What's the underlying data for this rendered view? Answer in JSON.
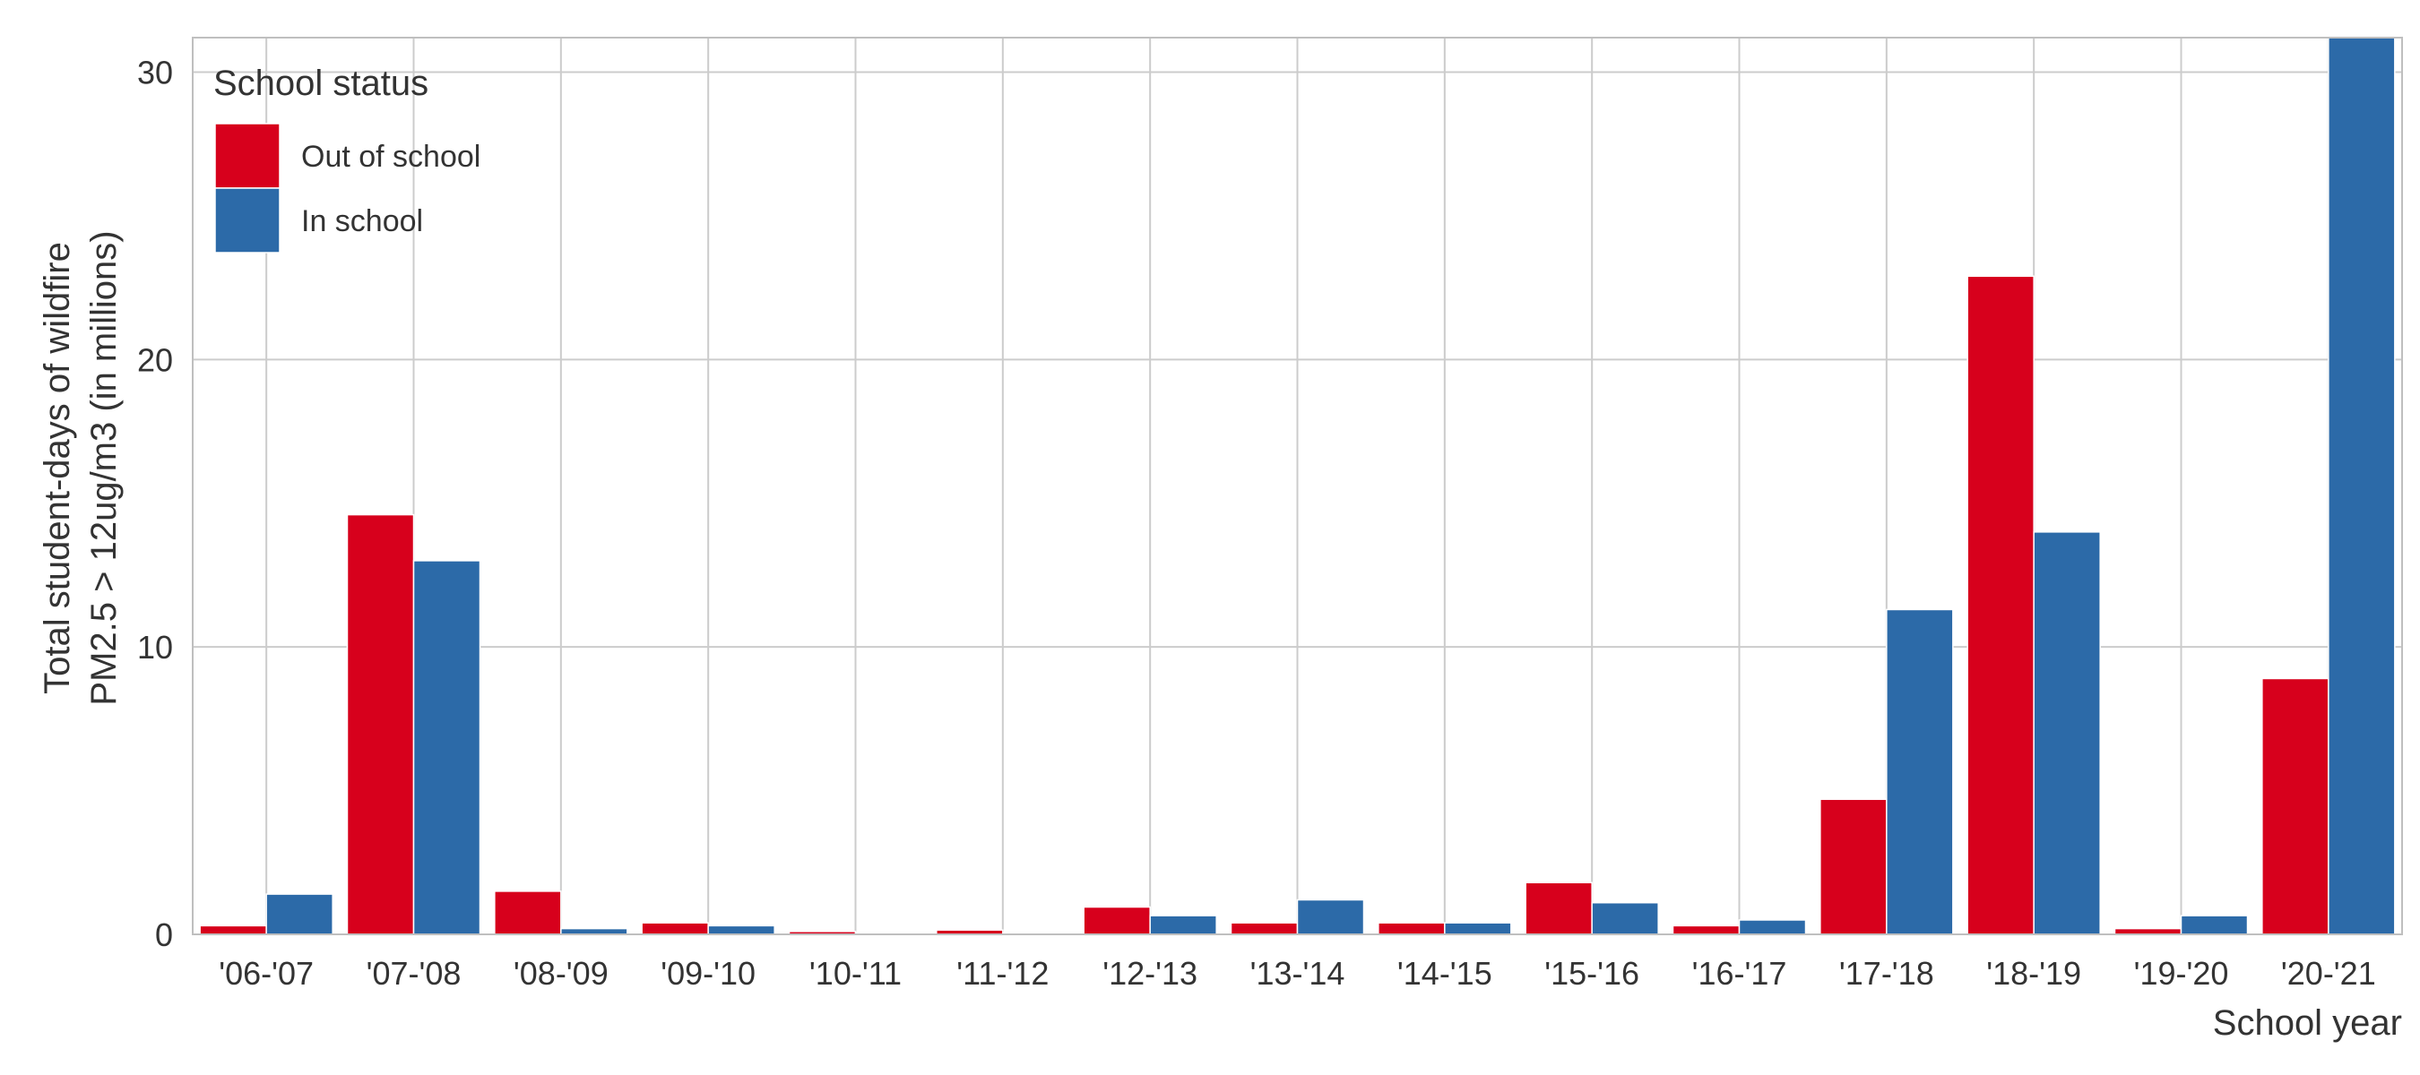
{
  "chart_data": {
    "type": "bar",
    "title": "",
    "xlabel": "School year",
    "ylabel": [
      "Total student-days of wildfire",
      "PM2.5 > 12ug/m3 (in millions)"
    ],
    "ylim": [
      0,
      31.2
    ],
    "yticks": [
      0,
      10,
      20,
      30
    ],
    "grid": true,
    "legend": {
      "title": "School status",
      "position": "top-left"
    },
    "categories": [
      "'06-'07",
      "'07-'08",
      "'08-'09",
      "'09-'10",
      "'10-'11",
      "'11-'12",
      "'12-'13",
      "'13-'14",
      "'14-'15",
      "'15-'16",
      "'16-'17",
      "'17-'18",
      "'18-'19",
      "'19-'20",
      "'20-'21"
    ],
    "series": [
      {
        "name": "Out of school",
        "color": "#d7001c",
        "values": [
          0.3,
          14.6,
          1.5,
          0.4,
          0.1,
          0.15,
          0.95,
          0.4,
          0.4,
          1.8,
          0.3,
          4.7,
          22.9,
          0.2,
          8.9
        ]
      },
      {
        "name": "In school",
        "color": "#2c6aa8",
        "values": [
          1.4,
          13.0,
          0.2,
          0.3,
          0.05,
          0.03,
          0.65,
          1.2,
          0.4,
          1.1,
          0.5,
          11.3,
          14.0,
          0.65,
          31.2
        ]
      }
    ]
  }
}
